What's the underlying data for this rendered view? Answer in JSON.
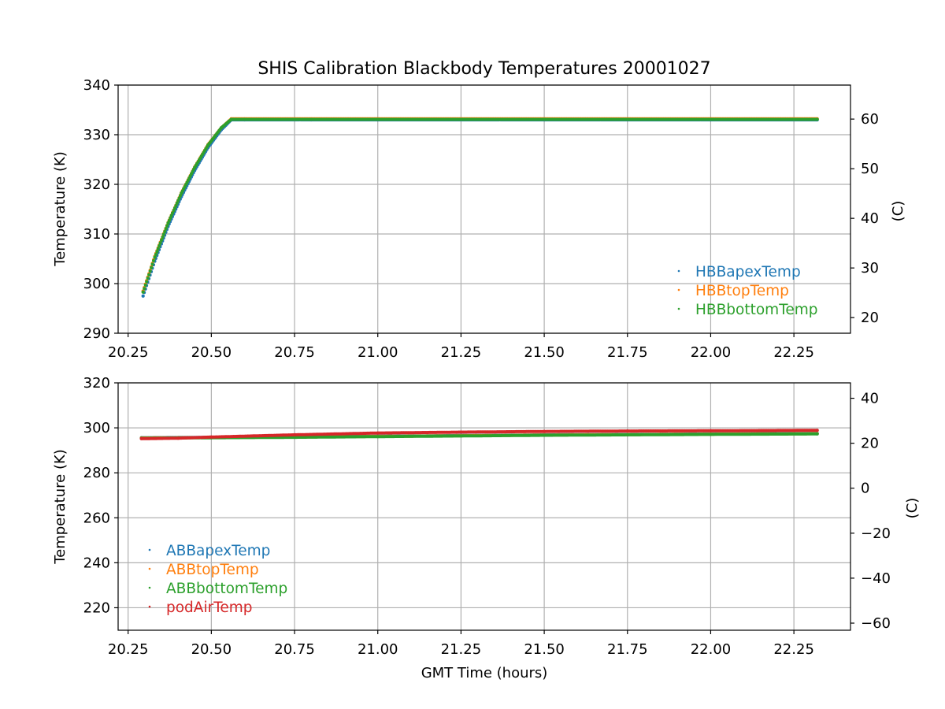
{
  "chart_data": [
    {
      "type": "scatter",
      "title": "SHIS Calibration Blackbody Temperatures 20001027",
      "xlabel": "",
      "ylabel": "Temperature (K)",
      "y2label": "(C)",
      "xlim": [
        20.22,
        22.42
      ],
      "ylim": [
        290,
        340
      ],
      "y2lim": [
        16.85,
        66.85
      ],
      "xticks": [
        "20.25",
        "20.50",
        "20.75",
        "21.00",
        "21.25",
        "21.50",
        "21.75",
        "22.00",
        "22.25"
      ],
      "yticks": [
        "290",
        "300",
        "310",
        "320",
        "330",
        "340"
      ],
      "y2ticks": [
        "20",
        "30",
        "40",
        "50",
        "60"
      ],
      "grid": true,
      "legend_position": "lower-right",
      "series": [
        {
          "name": "HBBapexTemp",
          "color": "#1f77b4",
          "x": [
            20.295,
            20.33,
            20.37,
            20.41,
            20.45,
            20.49,
            20.53,
            20.56,
            20.6,
            20.8,
            21.0,
            21.5,
            22.0,
            22.32
          ],
          "y": [
            297.5,
            304.5,
            311.5,
            317.5,
            322.8,
            327.4,
            331.0,
            333.0,
            333.0,
            333.0,
            333.0,
            333.0,
            333.0,
            333.0
          ]
        },
        {
          "name": "HBBtopTemp",
          "color": "#ff7f0e",
          "x": [
            20.295,
            20.33,
            20.37,
            20.41,
            20.45,
            20.49,
            20.53,
            20.56,
            20.6,
            20.8,
            21.0,
            21.5,
            22.0,
            22.32
          ],
          "y": [
            298.5,
            305.5,
            312.3,
            318.3,
            323.5,
            328.0,
            331.4,
            333.2,
            333.2,
            333.2,
            333.2,
            333.2,
            333.2,
            333.2
          ]
        },
        {
          "name": "HBBbottomTemp",
          "color": "#2ca02c",
          "x": [
            20.295,
            20.33,
            20.37,
            20.41,
            20.45,
            20.49,
            20.53,
            20.56,
            20.6,
            20.8,
            21.0,
            21.5,
            22.0,
            22.32
          ],
          "y": [
            298.3,
            305.3,
            312.2,
            318.2,
            323.4,
            327.9,
            331.4,
            333.1,
            333.1,
            333.1,
            333.1,
            333.1,
            333.1,
            333.1
          ]
        }
      ]
    },
    {
      "type": "scatter",
      "title": "",
      "xlabel": "GMT Time (hours)",
      "ylabel": "Temperature (K)",
      "y2label": "(C)",
      "xlim": [
        20.22,
        22.42
      ],
      "ylim": [
        210,
        320
      ],
      "y2lim": [
        -63.15,
        46.85
      ],
      "xticks": [
        "20.25",
        "20.50",
        "20.75",
        "21.00",
        "21.25",
        "21.50",
        "21.75",
        "22.00",
        "22.25"
      ],
      "yticks": [
        "220",
        "240",
        "260",
        "280",
        "300",
        "320"
      ],
      "y2ticks": [
        "−60",
        "−40",
        "−20",
        "0",
        "20",
        "40"
      ],
      "grid": true,
      "legend_position": "lower-left",
      "series": [
        {
          "name": "ABBapexTemp",
          "color": "#1f77b4",
          "x": [
            20.29,
            20.5,
            20.75,
            21.0,
            21.25,
            21.5,
            21.75,
            22.0,
            22.32
          ],
          "y": [
            295.6,
            295.8,
            296.0,
            296.3,
            296.6,
            296.9,
            297.1,
            297.3,
            297.5
          ]
        },
        {
          "name": "ABBtopTemp",
          "color": "#ff7f0e",
          "x": [
            20.29,
            20.5,
            20.75,
            21.0,
            21.25,
            21.5,
            21.75,
            22.0,
            22.32
          ],
          "y": [
            295.5,
            295.7,
            295.9,
            296.2,
            296.5,
            296.8,
            297.0,
            297.2,
            297.4
          ]
        },
        {
          "name": "ABBbottomTemp",
          "color": "#2ca02c",
          "x": [
            20.29,
            20.5,
            20.75,
            21.0,
            21.25,
            21.5,
            21.75,
            22.0,
            22.32
          ],
          "y": [
            295.4,
            295.6,
            295.8,
            296.1,
            296.4,
            296.7,
            296.9,
            297.1,
            297.3
          ]
        },
        {
          "name": "podAirTemp",
          "color": "#d62728",
          "x": [
            20.29,
            20.4,
            20.5,
            20.75,
            21.0,
            21.25,
            21.5,
            21.75,
            22.0,
            22.32
          ],
          "y": [
            295.2,
            295.4,
            295.9,
            296.9,
            297.7,
            298.1,
            298.4,
            298.6,
            298.7,
            298.9
          ]
        }
      ]
    }
  ]
}
